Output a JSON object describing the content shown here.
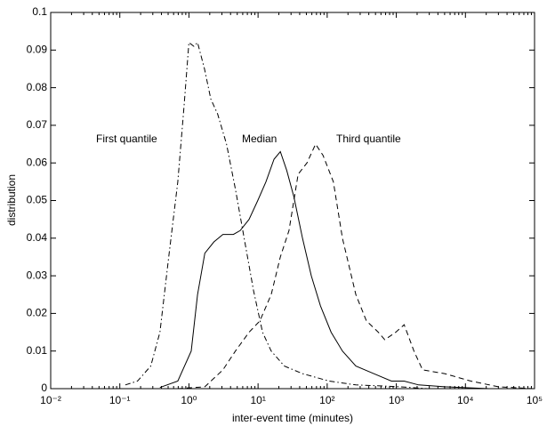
{
  "chart_data": {
    "type": "line",
    "xlabel": "inter-event time (minutes)",
    "ylabel": "distribution",
    "xscale": "log",
    "xlim": [
      0.01,
      100000
    ],
    "ylim": [
      0,
      0.1
    ],
    "xticks": [
      {
        "value": 0.01,
        "label": "10⁻²"
      },
      {
        "value": 0.1,
        "label": "10⁻¹"
      },
      {
        "value": 1,
        "label": "10⁰"
      },
      {
        "value": 10,
        "label": "10¹"
      },
      {
        "value": 100,
        "label": "10²"
      },
      {
        "value": 1000,
        "label": "10³"
      },
      {
        "value": 10000,
        "label": "10⁴"
      },
      {
        "value": 100000,
        "label": "10⁵"
      }
    ],
    "yticks": [
      0,
      0.01,
      0.02,
      0.03,
      0.04,
      0.05,
      0.06,
      0.07,
      0.08,
      0.09,
      0.1
    ],
    "annotations": [
      "First quantile",
      "Median",
      "Third quantile"
    ],
    "series": [
      {
        "name": "First quantile",
        "color": "#000000",
        "dash": "dashdot",
        "x": [
          0.12,
          0.18,
          0.28,
          0.38,
          0.51,
          0.69,
          0.85,
          1.0,
          1.18,
          1.33,
          1.68,
          2.07,
          2.6,
          3.5,
          4.7,
          6.3,
          8.6,
          11.6,
          15.5,
          24,
          44,
          107,
          260,
          1150,
          2800
        ],
        "values": [
          0.001,
          0.002,
          0.006,
          0.015,
          0.035,
          0.055,
          0.075,
          0.092,
          0.091,
          0.092,
          0.085,
          0.077,
          0.073,
          0.065,
          0.053,
          0.04,
          0.026,
          0.015,
          0.01,
          0.006,
          0.004,
          0.002,
          0.001,
          0.0005,
          0
        ]
      },
      {
        "name": "Median",
        "color": "#000000",
        "dash": "solid",
        "x": [
          0.38,
          0.69,
          1.08,
          1.33,
          1.7,
          2.3,
          3.1,
          4.4,
          5.5,
          7.4,
          9.9,
          13,
          17,
          21,
          26,
          33,
          44,
          59,
          80,
          114,
          166,
          260,
          470,
          850,
          1300,
          2100,
          5000,
          22000
        ],
        "values": [
          0.0003,
          0.002,
          0.01,
          0.025,
          0.036,
          0.039,
          0.041,
          0.041,
          0.042,
          0.045,
          0.05,
          0.055,
          0.061,
          0.063,
          0.058,
          0.051,
          0.04,
          0.03,
          0.022,
          0.015,
          0.01,
          0.006,
          0.004,
          0.002,
          0.002,
          0.001,
          0.0005,
          0
        ]
      },
      {
        "name": "Third quantile",
        "color": "#000000",
        "dash": "dashed",
        "x": [
          0.69,
          1.7,
          3.1,
          4.7,
          7.4,
          10.6,
          15.5,
          21,
          28,
          38,
          51,
          68,
          87,
          123,
          166,
          260,
          370,
          550,
          680,
          980,
          1300,
          1800,
          2400,
          5000,
          12000,
          30000,
          95000
        ],
        "values": [
          0,
          0.0005,
          0.005,
          0.01,
          0.015,
          0.018,
          0.025,
          0.035,
          0.042,
          0.057,
          0.06,
          0.065,
          0.062,
          0.055,
          0.04,
          0.025,
          0.018,
          0.015,
          0.013,
          0.015,
          0.017,
          0.01,
          0.005,
          0.004,
          0.002,
          0.0005,
          0
        ]
      }
    ]
  }
}
